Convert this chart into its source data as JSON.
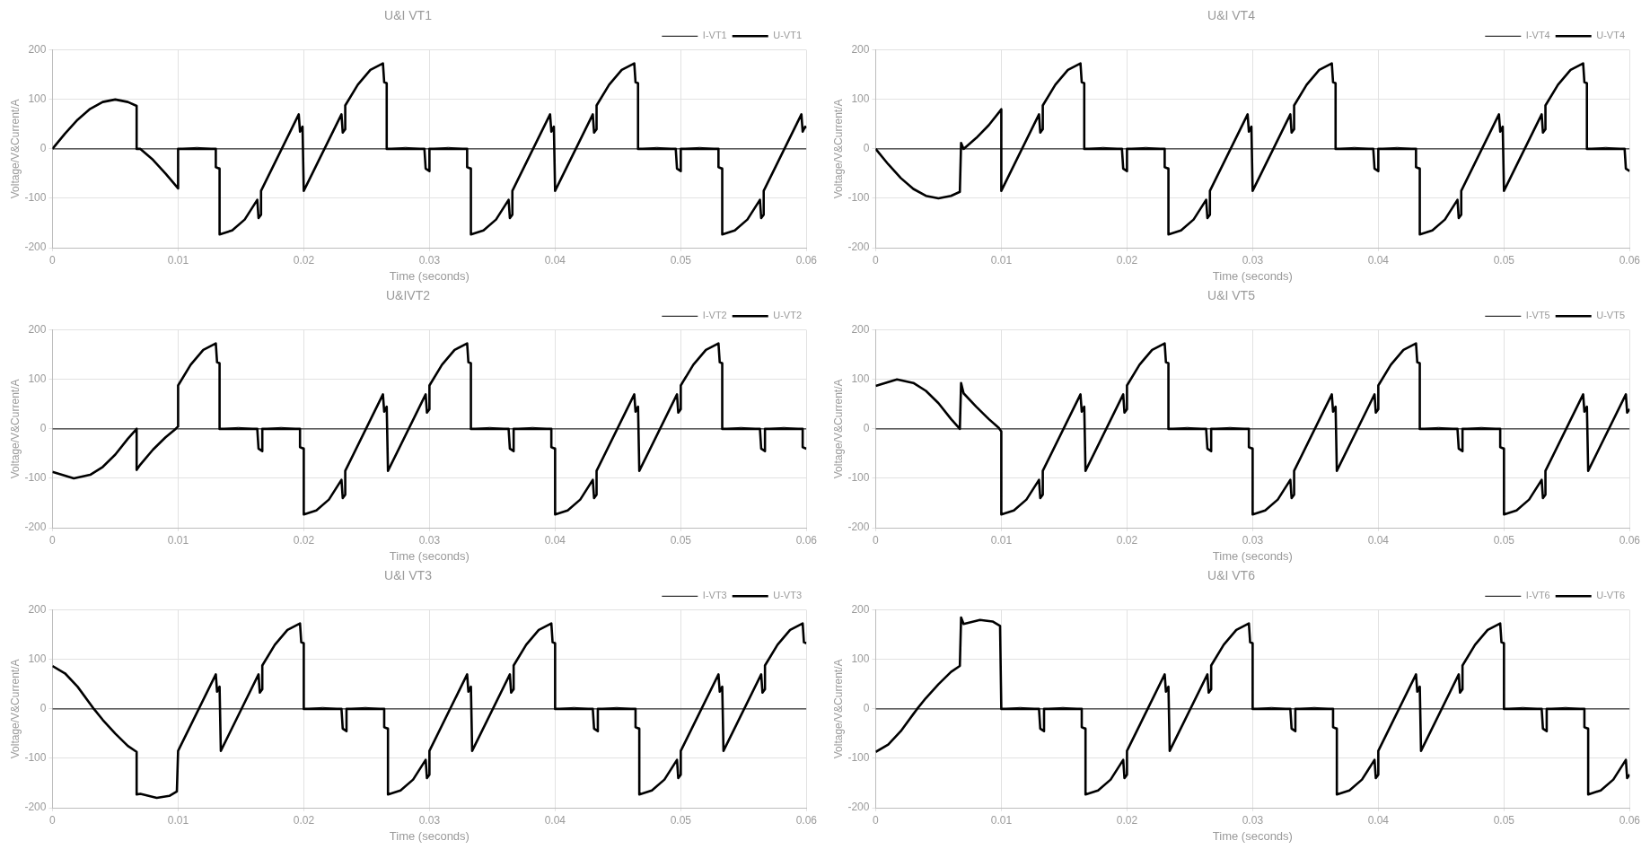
{
  "chart_data": [
    {
      "type": "line",
      "title": "U&I VT1",
      "xlabel": "Time (seconds)",
      "ylabel": "Voltage/V&Current/A",
      "xlim": [
        0,
        0.06
      ],
      "xticks": [
        0,
        0.01,
        0.02,
        0.03,
        0.04,
        0.05,
        0.06
      ],
      "ylim": [
        -200,
        200
      ],
      "yticks": [
        -200,
        -100,
        0,
        100,
        200
      ],
      "grid": true,
      "legend": "top right",
      "series": [
        {
          "name": "I-VT1",
          "color": "#000000",
          "x": [
            0,
            0.01,
            0.0115,
            0.013,
            0.0266,
            0.0281,
            0.0296,
            0.03,
            0.0315,
            0.033,
            0.0466,
            0.0481,
            0.0496,
            0.05,
            0.0515,
            0.053,
            0.06
          ],
          "values": [
            0,
            0,
            3,
            0,
            0,
            3,
            0,
            0,
            3,
            0,
            0,
            3,
            0,
            0,
            3,
            0,
            0
          ]
        },
        {
          "name": "U-VT1",
          "color": "#000000",
          "x": [
            0,
            0.001,
            0.002,
            0.003,
            0.004,
            0.005,
            0.006,
            0.0067,
            0.0067,
            0.007,
            0.008,
            0.009,
            0.01,
            0.01,
            0.013,
            0.013,
            0.0133,
            0.0133,
            0.0143,
            0.0153,
            0.0163,
            0.0164,
            0.0166,
            0.0166,
            0.0196,
            0.0197,
            0.0199,
            0.02,
            0.023,
            0.0231,
            0.0233,
            0.0233,
            0.0243,
            0.0253,
            0.0263,
            0.0264,
            0.0266,
            0.0266,
            0.0296,
            0.0297,
            0.03,
            0.03,
            0.033,
            0.033,
            0.0333,
            0.0333,
            0.0343,
            0.0353,
            0.0363,
            0.0364,
            0.0366,
            0.0366,
            0.0396,
            0.0397,
            0.0399,
            0.04,
            0.043,
            0.0431,
            0.0433,
            0.0433,
            0.0443,
            0.0453,
            0.0463,
            0.0464,
            0.0466,
            0.0466,
            0.0496,
            0.0497,
            0.05,
            0.05,
            0.053,
            0.053,
            0.0533,
            0.0533,
            0.0543,
            0.0553,
            0.0563,
            0.0564,
            0.0566,
            0.0566,
            0.0596,
            0.0597,
            0.0599,
            0.06
          ],
          "values": [
            0,
            31,
            59,
            81,
            95,
            100,
            95,
            87,
            0,
            0,
            -22,
            -50,
            -80,
            0,
            0,
            -37,
            -40,
            -173,
            -165,
            -143,
            -103,
            -140,
            -133,
            -85,
            70,
            35,
            45,
            -85,
            70,
            33,
            40,
            88,
            130,
            160,
            173,
            135,
            133,
            0,
            0,
            -40,
            -45,
            0,
            0,
            -37,
            -40,
            -173,
            -165,
            -143,
            -103,
            -140,
            -133,
            -85,
            70,
            35,
            45,
            -85,
            70,
            33,
            40,
            88,
            130,
            160,
            173,
            135,
            133,
            0,
            0,
            -40,
            -45,
            0,
            0,
            -37,
            -40,
            -173,
            -165,
            -143,
            -103,
            -140,
            -133,
            -85,
            70,
            35,
            45,
            42
          ]
        }
      ]
    },
    {
      "type": "line",
      "title": "U&I VT4",
      "xlabel": "Time (seconds)",
      "ylabel": "Voltage/V&Current/A",
      "xlim": [
        0,
        0.06
      ],
      "xticks": [
        0,
        0.01,
        0.02,
        0.03,
        0.04,
        0.05,
        0.06
      ],
      "ylim": [
        -200,
        200
      ],
      "yticks": [
        -200,
        -100,
        0,
        100,
        200
      ],
      "grid": true,
      "legend": "top right",
      "series": [
        {
          "name": "I-VT4",
          "color": "#000000",
          "x": [
            0,
            0.0166,
            0.0181,
            0.0196,
            0.02,
            0.0215,
            0.023,
            0.0366,
            0.0381,
            0.0396,
            0.04,
            0.0415,
            0.043,
            0.0566,
            0.0581,
            0.0596,
            0.06
          ],
          "values": [
            0,
            0,
            3,
            0,
            0,
            3,
            0,
            0,
            3,
            0,
            0,
            3,
            0,
            0,
            3,
            0,
            0
          ]
        },
        {
          "name": "U-VT4",
          "color": "#000000",
          "x": [
            0,
            0.001,
            0.002,
            0.003,
            0.004,
            0.005,
            0.006,
            0.0067,
            0.0068,
            0.007,
            0.008,
            0.009,
            0.01,
            0.01,
            0.013,
            0.0131,
            0.0133,
            0.0133,
            0.0143,
            0.0153,
            0.0163,
            0.0164,
            0.0166,
            0.0166,
            0.0196,
            0.0197,
            0.02,
            0.02,
            0.023,
            0.023,
            0.0233,
            0.0233,
            0.0243,
            0.0253,
            0.0263,
            0.0264,
            0.0266,
            0.0266,
            0.0296,
            0.0297,
            0.0299,
            0.03,
            0.033,
            0.0331,
            0.0333,
            0.0333,
            0.0343,
            0.0353,
            0.0363,
            0.0364,
            0.0366,
            0.0366,
            0.0396,
            0.0397,
            0.04,
            0.04,
            0.043,
            0.043,
            0.0433,
            0.0433,
            0.0443,
            0.0453,
            0.0463,
            0.0464,
            0.0466,
            0.0466,
            0.0496,
            0.0497,
            0.0499,
            0.05,
            0.053,
            0.0531,
            0.0533,
            0.0533,
            0.0543,
            0.0553,
            0.0563,
            0.0564,
            0.0566,
            0.0566,
            0.0596,
            0.0597,
            0.06
          ],
          "values": [
            0,
            -31,
            -59,
            -81,
            -95,
            -100,
            -95,
            -87,
            12,
            0,
            22,
            48,
            80,
            -85,
            70,
            33,
            40,
            88,
            130,
            160,
            173,
            135,
            133,
            0,
            0,
            -40,
            -45,
            0,
            0,
            -37,
            -40,
            -173,
            -165,
            -143,
            -103,
            -140,
            -133,
            -85,
            70,
            35,
            45,
            -85,
            70,
            33,
            40,
            88,
            130,
            160,
            173,
            135,
            133,
            0,
            0,
            -40,
            -45,
            0,
            0,
            -37,
            -40,
            -173,
            -165,
            -143,
            -103,
            -140,
            -133,
            -85,
            70,
            35,
            45,
            -85,
            70,
            33,
            40,
            88,
            130,
            160,
            173,
            135,
            133,
            0,
            0,
            -40,
            -45
          ]
        }
      ]
    },
    {
      "type": "line",
      "title": "U&IVT2",
      "xlabel": "Time (seconds)",
      "ylabel": "Voltage/V&Current/A",
      "xlim": [
        0,
        0.06
      ],
      "xticks": [
        0,
        0.01,
        0.02,
        0.03,
        0.04,
        0.05,
        0.06
      ],
      "ylim": [
        -200,
        200
      ],
      "yticks": [
        -200,
        -100,
        0,
        100,
        200
      ],
      "grid": true,
      "legend": "top right",
      "series": [
        {
          "name": "I-VT2",
          "color": "#000000",
          "x": [
            0,
            0.0133,
            0.0148,
            0.0163,
            0.0167,
            0.0182,
            0.0197,
            0.0333,
            0.0348,
            0.0363,
            0.0367,
            0.0382,
            0.0397,
            0.0533,
            0.0548,
            0.0563,
            0.0567,
            0.0582,
            0.0597,
            0.06
          ],
          "values": [
            0,
            0,
            3,
            0,
            0,
            3,
            0,
            0,
            3,
            0,
            0,
            3,
            0,
            0,
            3,
            0,
            0,
            3,
            0,
            0
          ]
        },
        {
          "name": "U-VT2",
          "color": "#000000",
          "x": [
            0,
            0.0017,
            0.003,
            0.004,
            0.005,
            0.006,
            0.0067,
            0.0067,
            0.007,
            0.008,
            0.009,
            0.0098,
            0.01,
            0.01,
            0.011,
            0.012,
            0.013,
            0.0131,
            0.0133,
            0.0133,
            0.0163,
            0.0164,
            0.0167,
            0.0167,
            0.0197,
            0.0197,
            0.02,
            0.02,
            0.021,
            0.022,
            0.023,
            0.0231,
            0.0233,
            0.0233,
            0.0263,
            0.0264,
            0.0266,
            0.0267,
            0.0297,
            0.0298,
            0.03,
            0.03,
            0.031,
            0.032,
            0.033,
            0.0331,
            0.0333,
            0.0333,
            0.0363,
            0.0364,
            0.0367,
            0.0367,
            0.0397,
            0.0397,
            0.04,
            0.04,
            0.041,
            0.042,
            0.043,
            0.0431,
            0.0433,
            0.0433,
            0.0463,
            0.0464,
            0.0466,
            0.0467,
            0.0497,
            0.0498,
            0.05,
            0.05,
            0.051,
            0.052,
            0.053,
            0.0531,
            0.0533,
            0.0533,
            0.0563,
            0.0564,
            0.0567,
            0.0567,
            0.0597,
            0.0597,
            0.06
          ],
          "values": [
            -87,
            -100,
            -93,
            -77,
            -52,
            -20,
            0,
            -83,
            -72,
            -42,
            -17,
            0,
            5,
            88,
            130,
            160,
            173,
            135,
            133,
            0,
            0,
            -40,
            -45,
            0,
            0,
            -37,
            -40,
            -173,
            -165,
            -143,
            -103,
            -140,
            -133,
            -85,
            70,
            35,
            45,
            -85,
            70,
            33,
            40,
            88,
            130,
            160,
            173,
            135,
            133,
            0,
            0,
            -40,
            -45,
            0,
            0,
            -37,
            -40,
            -173,
            -165,
            -143,
            -103,
            -140,
            -133,
            -85,
            70,
            35,
            45,
            -85,
            70,
            33,
            40,
            88,
            130,
            160,
            173,
            135,
            133,
            0,
            0,
            -40,
            -45,
            0,
            0,
            -37,
            -40
          ]
        }
      ]
    },
    {
      "type": "line",
      "title": "U&I VT5",
      "xlabel": "Time (seconds)",
      "ylabel": "Voltage/V&Current/A",
      "xlim": [
        0,
        0.06
      ],
      "xticks": [
        0,
        0.01,
        0.02,
        0.03,
        0.04,
        0.05,
        0.06
      ],
      "ylim": [
        -200,
        200
      ],
      "yticks": [
        -200,
        -100,
        0,
        100,
        200
      ],
      "grid": true,
      "legend": "top right",
      "series": [
        {
          "name": "I-VT5",
          "color": "#000000",
          "x": [
            0,
            0.0233,
            0.0248,
            0.0263,
            0.0267,
            0.0282,
            0.0297,
            0.0433,
            0.0448,
            0.0463,
            0.0467,
            0.0482,
            0.0497,
            0.06
          ],
          "values": [
            0,
            0,
            3,
            0,
            0,
            3,
            0,
            0,
            3,
            0,
            0,
            3,
            0,
            0
          ]
        },
        {
          "name": "U-VT5",
          "color": "#000000",
          "x": [
            0,
            0.0017,
            0.003,
            0.004,
            0.005,
            0.006,
            0.0067,
            0.0068,
            0.007,
            0.008,
            0.009,
            0.0098,
            0.01,
            0.01,
            0.011,
            0.012,
            0.013,
            0.0131,
            0.0133,
            0.0133,
            0.0163,
            0.0164,
            0.0166,
            0.0167,
            0.0197,
            0.0198,
            0.02,
            0.02,
            0.021,
            0.022,
            0.023,
            0.0231,
            0.0233,
            0.0233,
            0.0263,
            0.0264,
            0.0267,
            0.0267,
            0.0297,
            0.0297,
            0.03,
            0.03,
            0.031,
            0.032,
            0.033,
            0.0331,
            0.0333,
            0.0333,
            0.0363,
            0.0364,
            0.0366,
            0.0367,
            0.0397,
            0.0398,
            0.04,
            0.04,
            0.041,
            0.042,
            0.043,
            0.0431,
            0.0433,
            0.0433,
            0.0463,
            0.0464,
            0.0467,
            0.0467,
            0.0497,
            0.0497,
            0.05,
            0.05,
            0.051,
            0.052,
            0.053,
            0.0531,
            0.0533,
            0.0533,
            0.0563,
            0.0564,
            0.0566,
            0.0567,
            0.0597,
            0.0598,
            0.06
          ],
          "values": [
            87,
            100,
            93,
            77,
            52,
            20,
            0,
            93,
            72,
            45,
            20,
            2,
            -5,
            -173,
            -165,
            -143,
            -103,
            -140,
            -133,
            -85,
            70,
            35,
            45,
            -85,
            70,
            33,
            40,
            88,
            130,
            160,
            173,
            135,
            133,
            0,
            0,
            -40,
            -45,
            0,
            0,
            -37,
            -40,
            -173,
            -165,
            -143,
            -103,
            -140,
            -133,
            -85,
            70,
            35,
            45,
            -85,
            70,
            33,
            40,
            88,
            130,
            160,
            173,
            135,
            133,
            0,
            0,
            -40,
            -45,
            0,
            0,
            -37,
            -40,
            -173,
            -165,
            -143,
            -103,
            -140,
            -133,
            -85,
            70,
            35,
            45,
            -85,
            70,
            33,
            40
          ]
        }
      ]
    },
    {
      "type": "line",
      "title": "U&I VT3",
      "xlabel": "Time (seconds)",
      "ylabel": "Voltage/V&Current/A",
      "xlim": [
        0,
        0.06
      ],
      "xticks": [
        0,
        0.01,
        0.02,
        0.03,
        0.04,
        0.05,
        0.06
      ],
      "ylim": [
        -200,
        200
      ],
      "yticks": [
        -200,
        -100,
        0,
        100,
        200
      ],
      "grid": true,
      "legend": "top right",
      "series": [
        {
          "name": "I-VT3",
          "color": "#000000",
          "x": [
            0,
            0.02,
            0.0215,
            0.023,
            0.0234,
            0.0249,
            0.0264,
            0.04,
            0.0415,
            0.043,
            0.0434,
            0.0449,
            0.0464,
            0.06
          ],
          "values": [
            0,
            0,
            3,
            0,
            0,
            3,
            0,
            0,
            3,
            0,
            0,
            3,
            0,
            0
          ]
        },
        {
          "name": "U-VT3",
          "color": "#000000",
          "x": [
            0,
            0.001,
            0.002,
            0.0033,
            0.004,
            0.005,
            0.006,
            0.0067,
            0.0067,
            0.007,
            0.0083,
            0.0093,
            0.0099,
            0.01,
            0.013,
            0.0131,
            0.0133,
            0.0134,
            0.0164,
            0.0165,
            0.0167,
            0.0167,
            0.0177,
            0.0187,
            0.0197,
            0.0198,
            0.02,
            0.02,
            0.023,
            0.0231,
            0.0234,
            0.0234,
            0.0264,
            0.0264,
            0.0267,
            0.0267,
            0.0277,
            0.0287,
            0.0297,
            0.0298,
            0.03,
            0.03,
            0.033,
            0.0331,
            0.0333,
            0.0334,
            0.0364,
            0.0365,
            0.0367,
            0.0367,
            0.0377,
            0.0387,
            0.0397,
            0.0398,
            0.04,
            0.04,
            0.043,
            0.0431,
            0.0434,
            0.0434,
            0.0464,
            0.0464,
            0.0467,
            0.0467,
            0.0477,
            0.0487,
            0.0497,
            0.0498,
            0.05,
            0.05,
            0.053,
            0.0531,
            0.0533,
            0.0534,
            0.0564,
            0.0565,
            0.0567,
            0.0567,
            0.0577,
            0.0587,
            0.0597,
            0.0598,
            0.06
          ],
          "values": [
            87,
            72,
            45,
            0,
            -22,
            -50,
            -75,
            -87,
            -173,
            -172,
            -180,
            -176,
            -167,
            -85,
            70,
            35,
            45,
            -85,
            70,
            33,
            40,
            88,
            130,
            160,
            173,
            135,
            133,
            0,
            0,
            -40,
            -45,
            0,
            0,
            -37,
            -40,
            -173,
            -165,
            -143,
            -103,
            -140,
            -133,
            -85,
            70,
            35,
            45,
            -85,
            70,
            33,
            40,
            88,
            130,
            160,
            173,
            135,
            133,
            0,
            0,
            -40,
            -45,
            0,
            0,
            -37,
            -40,
            -173,
            -165,
            -143,
            -103,
            -140,
            -133,
            -85,
            70,
            35,
            45,
            -85,
            70,
            33,
            40,
            88,
            130,
            160,
            173,
            135,
            133
          ]
        }
      ]
    },
    {
      "type": "line",
      "title": "U&I VT6",
      "xlabel": "Time (seconds)",
      "ylabel": "Voltage/V&Current/A",
      "xlim": [
        0,
        0.06
      ],
      "xticks": [
        0,
        0.01,
        0.02,
        0.03,
        0.04,
        0.05,
        0.06
      ],
      "ylim": [
        -200,
        200
      ],
      "yticks": [
        -200,
        -100,
        0,
        100,
        200
      ],
      "grid": true,
      "legend": "top right",
      "series": [
        {
          "name": "I-VT6",
          "color": "#000000",
          "x": [
            0,
            0.01,
            0.0115,
            0.013,
            0.0134,
            0.0149,
            0.0164,
            0.03,
            0.0315,
            0.033,
            0.0334,
            0.0349,
            0.0364,
            0.05,
            0.0515,
            0.053,
            0.0534,
            0.0549,
            0.0564,
            0.06
          ],
          "values": [
            0,
            0,
            3,
            0,
            0,
            3,
            0,
            0,
            3,
            0,
            0,
            3,
            0,
            0,
            3,
            0,
            0,
            3,
            0,
            0
          ]
        },
        {
          "name": "U-VT6",
          "color": "#000000",
          "x": [
            0,
            0.001,
            0.002,
            0.0033,
            0.004,
            0.005,
            0.006,
            0.0067,
            0.0068,
            0.007,
            0.0083,
            0.0093,
            0.0099,
            0.01,
            0.013,
            0.0131,
            0.0134,
            0.0134,
            0.0164,
            0.0164,
            0.0167,
            0.0167,
            0.0177,
            0.0187,
            0.0197,
            0.0198,
            0.02,
            0.02,
            0.023,
            0.0231,
            0.0233,
            0.0234,
            0.0264,
            0.0265,
            0.0267,
            0.0267,
            0.0277,
            0.0287,
            0.0297,
            0.0298,
            0.03,
            0.03,
            0.033,
            0.0331,
            0.0334,
            0.0334,
            0.0364,
            0.0364,
            0.0367,
            0.0367,
            0.0377,
            0.0387,
            0.0397,
            0.0398,
            0.04,
            0.04,
            0.043,
            0.0431,
            0.0433,
            0.0434,
            0.0464,
            0.0465,
            0.0467,
            0.0467,
            0.0477,
            0.0487,
            0.0497,
            0.0498,
            0.05,
            0.05,
            0.053,
            0.0531,
            0.0534,
            0.0534,
            0.0564,
            0.0564,
            0.0567,
            0.0567,
            0.0577,
            0.0587,
            0.0597,
            0.0598,
            0.06
          ],
          "values": [
            -87,
            -72,
            -45,
            0,
            22,
            50,
            75,
            87,
            185,
            172,
            180,
            177,
            168,
            0,
            0,
            -40,
            -45,
            0,
            0,
            -37,
            -40,
            -173,
            -165,
            -143,
            -103,
            -140,
            -133,
            -85,
            70,
            35,
            45,
            -85,
            70,
            33,
            40,
            88,
            130,
            160,
            173,
            135,
            133,
            0,
            0,
            -40,
            -45,
            0,
            0,
            -37,
            -40,
            -173,
            -165,
            -143,
            -103,
            -140,
            -133,
            -85,
            70,
            35,
            45,
            -85,
            70,
            33,
            40,
            88,
            130,
            160,
            173,
            135,
            133,
            0,
            0,
            -40,
            -45,
            0,
            0,
            -37,
            -40,
            -173,
            -165,
            -143,
            -103,
            -140,
            -133
          ]
        }
      ]
    }
  ]
}
